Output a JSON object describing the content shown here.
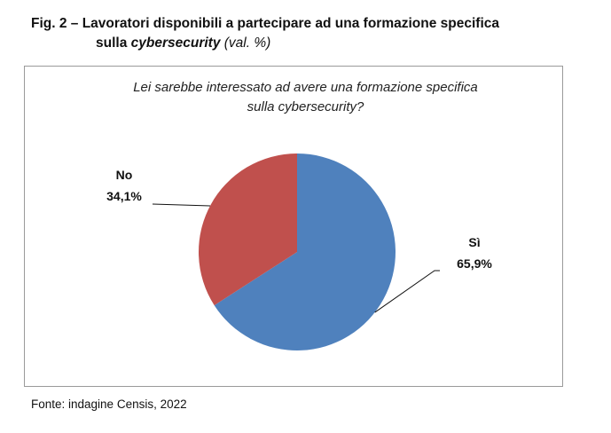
{
  "title": {
    "prefix": "Fig. 2 – Lavoratori disponibili a partecipare ad una formazione specifica",
    "line2_a": "sulla ",
    "line2_b": "cybersecurity",
    "line2_c": " (val. %)"
  },
  "chart_data": {
    "type": "pie",
    "title": "Lei sarebbe interessato ad avere una formazione specifica sulla cybersecurity?",
    "title_line1": "Lei sarebbe interessato ad avere una formazione specifica",
    "title_line2": "sulla cybersecurity?",
    "categories": [
      "Sì",
      "No"
    ],
    "values": [
      65.9,
      34.1
    ],
    "value_labels": [
      "65,9%",
      "34,1%"
    ],
    "colors": [
      "#4f81bd",
      "#c0504d"
    ]
  },
  "source": "Fonte: indagine Censis, 2022"
}
